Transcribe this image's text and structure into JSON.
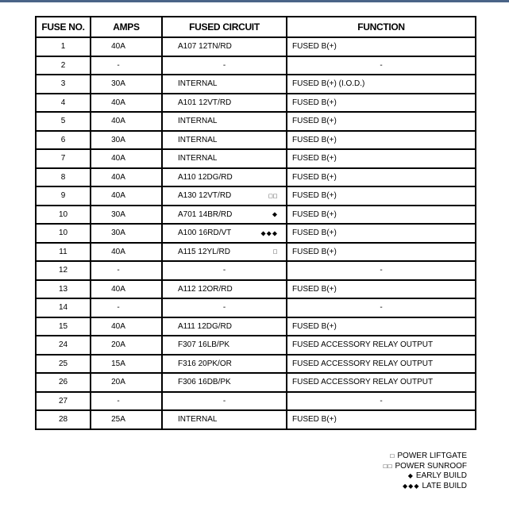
{
  "headers": [
    "FUSE NO.",
    "AMPS",
    "FUSED CIRCUIT",
    "FUNCTION"
  ],
  "rows": [
    {
      "fuse": "1",
      "amps": "40A",
      "circuit": "A107 12TN/RD",
      "mark": "",
      "function": "FUSED B(+)"
    },
    {
      "fuse": "2",
      "amps": "-",
      "circuit": "-",
      "mark": "",
      "function": "-"
    },
    {
      "fuse": "3",
      "amps": "30A",
      "circuit": "INTERNAL",
      "mark": "",
      "function": "FUSED B(+) (I.O.D.)"
    },
    {
      "fuse": "4",
      "amps": "40A",
      "circuit": "A101 12VT/RD",
      "mark": "",
      "function": "FUSED B(+)"
    },
    {
      "fuse": "5",
      "amps": "40A",
      "circuit": "INTERNAL",
      "mark": "",
      "function": "FUSED B(+)"
    },
    {
      "fuse": "6",
      "amps": "30A",
      "circuit": "INTERNAL",
      "mark": "",
      "function": "FUSED B(+)"
    },
    {
      "fuse": "7",
      "amps": "40A",
      "circuit": "INTERNAL",
      "mark": "",
      "function": "FUSED B(+)"
    },
    {
      "fuse": "8",
      "amps": "40A",
      "circuit": "A110 12DG/RD",
      "mark": "",
      "function": "FUSED B(+)"
    },
    {
      "fuse": "9",
      "amps": "40A",
      "circuit": "A130 12VT/RD",
      "mark": "□□",
      "function": "FUSED B(+)"
    },
    {
      "fuse": "10",
      "amps": "30A",
      "circuit": "A701 14BR/RD",
      "mark": "◆",
      "function": "FUSED B(+)"
    },
    {
      "fuse": "10",
      "amps": "30A",
      "circuit": "A100 16RD/VT",
      "mark": "◆◆◆",
      "function": "FUSED B(+)"
    },
    {
      "fuse": "11",
      "amps": "40A",
      "circuit": "A115 12YL/RD",
      "mark": "□",
      "function": "FUSED B(+)"
    },
    {
      "fuse": "12",
      "amps": "-",
      "circuit": "-",
      "mark": "",
      "function": "-"
    },
    {
      "fuse": "13",
      "amps": "40A",
      "circuit": "A112 12OR/RD",
      "mark": "",
      "function": "FUSED B(+)"
    },
    {
      "fuse": "14",
      "amps": "-",
      "circuit": "-",
      "mark": "",
      "function": "-"
    },
    {
      "fuse": "15",
      "amps": "40A",
      "circuit": "A111 12DG/RD",
      "mark": "",
      "function": "FUSED B(+)"
    },
    {
      "fuse": "24",
      "amps": "20A",
      "circuit": "F307 16LB/PK",
      "mark": "",
      "function": "FUSED ACCESSORY RELAY OUTPUT"
    },
    {
      "fuse": "25",
      "amps": "15A",
      "circuit": "F316 20PK/OR",
      "mark": "",
      "function": "FUSED ACCESSORY RELAY OUTPUT"
    },
    {
      "fuse": "26",
      "amps": "20A",
      "circuit": "F306 16DB/PK",
      "mark": "",
      "function": "FUSED ACCESSORY RELAY OUTPUT"
    },
    {
      "fuse": "27",
      "amps": "-",
      "circuit": "-",
      "mark": "",
      "function": "-"
    },
    {
      "fuse": "28",
      "amps": "25A",
      "circuit": "INTERNAL",
      "mark": "",
      "function": "FUSED B(+)"
    }
  ],
  "legend": [
    {
      "symbol": "□",
      "label": "POWER LIFTGATE"
    },
    {
      "symbol": "□□",
      "label": "POWER SUNROOF"
    },
    {
      "symbol": "◆",
      "label": "EARLY BUILD"
    },
    {
      "symbol": "◆◆◆",
      "label": "LATE BUILD"
    }
  ],
  "colors": {
    "top_bar": "#4a6487",
    "border": "#000000"
  }
}
